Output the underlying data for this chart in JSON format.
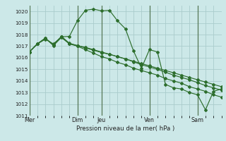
{
  "title": "",
  "xlabel": "Pression niveau de la mer( hPa )",
  "ylim": [
    1011,
    1020.5
  ],
  "yticks": [
    1011,
    1012,
    1013,
    1014,
    1015,
    1016,
    1017,
    1018,
    1019,
    1020
  ],
  "xtick_labels": [
    "Mer",
    "Dim",
    "Jeu",
    "Ven",
    "Sam"
  ],
  "xtick_positions": [
    0,
    6,
    9,
    15,
    21
  ],
  "bg_color": "#cce8e8",
  "grid_color": "#aacccc",
  "line_color": "#2d6e2d",
  "vline_positions": [
    0,
    6,
    9,
    15,
    21
  ],
  "vline_color": "#557755",
  "series": [
    [
      1016.5,
      1017.2,
      1017.6,
      1017.2,
      1017.8,
      1017.85,
      1019.2,
      1020.1,
      1020.2,
      1020.05,
      1020.1,
      1019.2,
      1018.5,
      1016.6,
      1015.1,
      1016.7,
      1016.5,
      1013.7,
      1013.4,
      1013.3,
      1013.0,
      1012.8,
      1011.5,
      1013.1,
      1013.3
    ],
    [
      1016.5,
      1017.2,
      1017.7,
      1017.05,
      1017.75,
      1017.2,
      1017.05,
      1016.85,
      1016.65,
      1016.45,
      1016.3,
      1016.1,
      1015.9,
      1015.7,
      1015.5,
      1015.3,
      1015.1,
      1014.9,
      1014.7,
      1014.5,
      1014.3,
      1014.1,
      1013.9,
      1013.7,
      1013.5
    ],
    [
      1016.5,
      1017.2,
      1017.65,
      1017.1,
      1017.85,
      1017.25,
      1017.05,
      1016.9,
      1016.7,
      1016.5,
      1016.3,
      1016.1,
      1015.9,
      1015.65,
      1015.4,
      1015.2,
      1015.0,
      1014.75,
      1014.5,
      1014.3,
      1014.1,
      1013.85,
      1013.6,
      1013.4,
      1013.2
    ],
    [
      1016.5,
      1017.2,
      1017.7,
      1017.1,
      1017.8,
      1017.2,
      1017.0,
      1016.7,
      1016.4,
      1016.1,
      1015.9,
      1015.6,
      1015.4,
      1015.1,
      1014.9,
      1014.7,
      1014.5,
      1014.2,
      1014.0,
      1013.8,
      1013.5,
      1013.3,
      1013.1,
      1012.8,
      1012.6
    ]
  ]
}
